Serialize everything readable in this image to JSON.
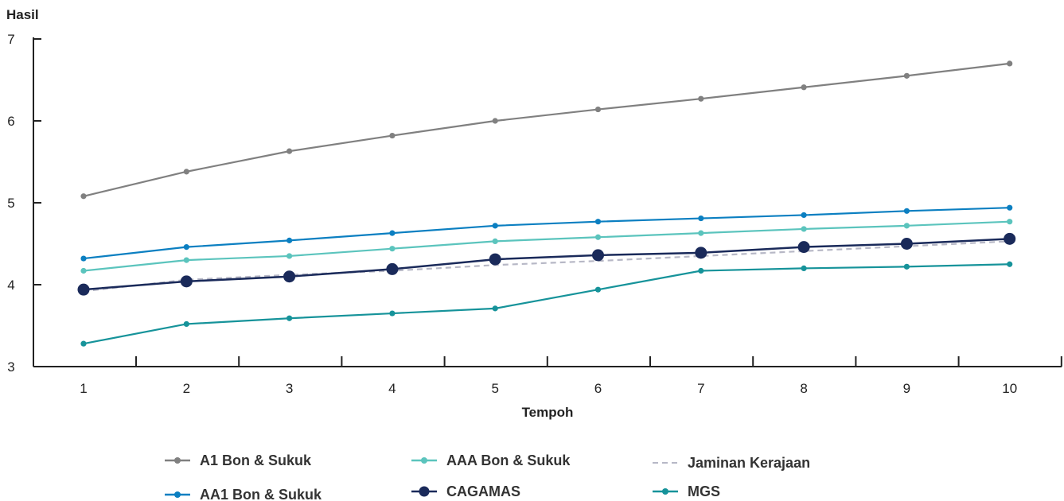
{
  "chart_data": {
    "type": "line",
    "xlabel": "Tempoh",
    "ylabel": "Hasil",
    "x": [
      1,
      2,
      3,
      4,
      5,
      6,
      7,
      8,
      9,
      10
    ],
    "ylim": [
      3,
      7
    ],
    "yticks": [
      3,
      4,
      5,
      6,
      7
    ],
    "legend_position": "bottom",
    "grid": false,
    "series": [
      {
        "name": "A1 Bon & Sukuk",
        "color": "#808080",
        "style": "solid",
        "marker": "small",
        "values": [
          5.08,
          5.38,
          5.63,
          5.82,
          6.0,
          6.14,
          6.27,
          6.41,
          6.55,
          6.7
        ]
      },
      {
        "name": "AAA Bon & Sukuk",
        "color": "#5bc4bd",
        "style": "solid",
        "marker": "small",
        "values": [
          4.17,
          4.3,
          4.35,
          4.44,
          4.53,
          4.58,
          4.63,
          4.68,
          4.72,
          4.77
        ]
      },
      {
        "name": "Jaminan Kerajaan",
        "color": "#b7b8c6",
        "style": "dashed",
        "marker": "none",
        "values": [
          3.92,
          4.06,
          4.12,
          4.17,
          4.24,
          4.29,
          4.35,
          4.41,
          4.47,
          4.53
        ]
      },
      {
        "name": "AA1 Bon & Sukuk",
        "color": "#0b7fc1",
        "style": "solid",
        "marker": "small",
        "values": [
          4.32,
          4.46,
          4.54,
          4.63,
          4.72,
          4.77,
          4.81,
          4.85,
          4.9,
          4.94
        ]
      },
      {
        "name": "CAGAMAS",
        "color": "#1a2a5a",
        "style": "solid",
        "marker": "large",
        "values": [
          3.94,
          4.04,
          4.1,
          4.19,
          4.31,
          4.36,
          4.39,
          4.46,
          4.5,
          4.56
        ]
      },
      {
        "name": "MGS",
        "color": "#16939a",
        "style": "solid",
        "marker": "small",
        "values": [
          3.28,
          3.52,
          3.59,
          3.65,
          3.71,
          3.94,
          4.17,
          4.2,
          4.22,
          4.25
        ]
      }
    ]
  }
}
